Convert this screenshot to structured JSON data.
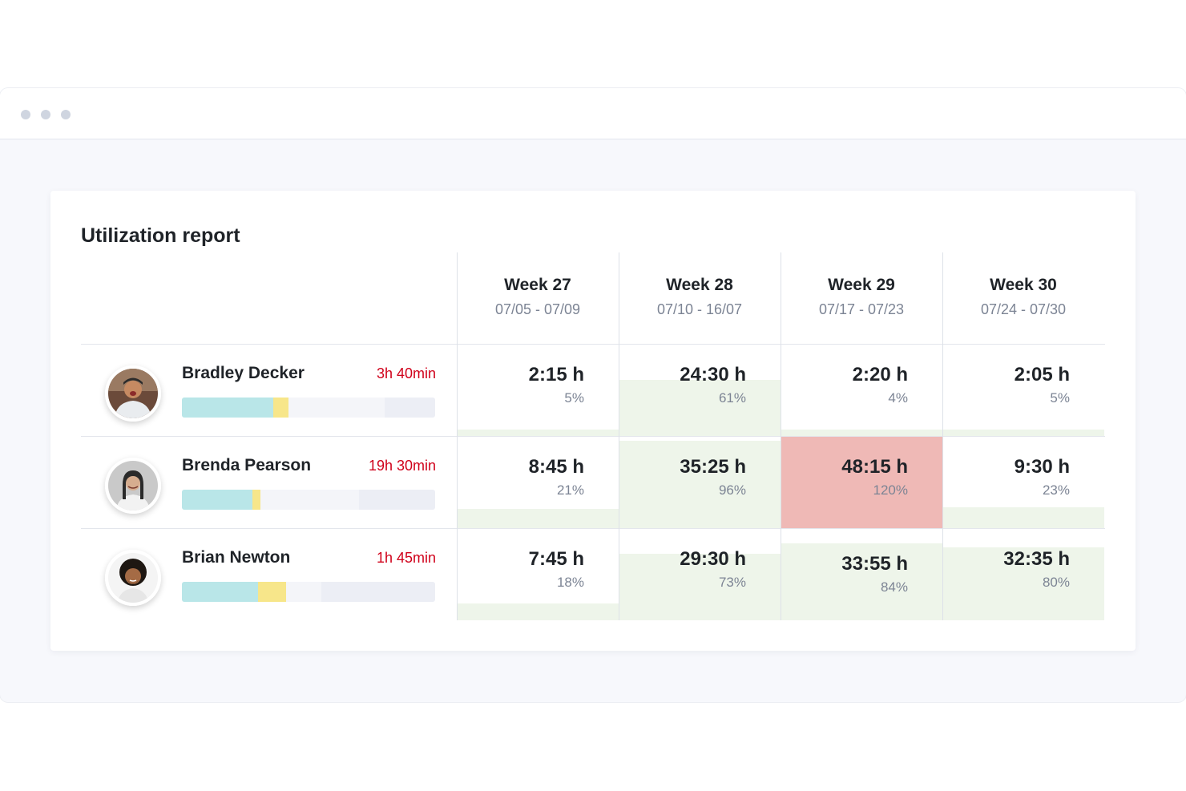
{
  "report": {
    "title": "Utilization report",
    "weeks": [
      {
        "name": "Week 27",
        "range": "07/05 - 07/09"
      },
      {
        "name": "Week 28",
        "range": "07/10 - 16/07"
      },
      {
        "name": "Week 29",
        "range": "07/17 - 07/23"
      },
      {
        "name": "Week 30",
        "range": "07/24 - 07/30"
      }
    ],
    "rows": [
      {
        "name": "Bradley Decker",
        "time": "3h 40min",
        "avatar": "avatar-bradley",
        "bar": {
          "billable": 0.36,
          "nonbillable": 0.06,
          "booked": 0.8
        },
        "cells": [
          {
            "hours": "2:15 h",
            "percent": "5%",
            "utilization": 5
          },
          {
            "hours": "24:30 h",
            "percent": "61%",
            "utilization": 61
          },
          {
            "hours": "2:20 h",
            "percent": "4%",
            "utilization": 4
          },
          {
            "hours": "2:05 h",
            "percent": "5%",
            "utilization": 5
          }
        ]
      },
      {
        "name": "Brenda Pearson",
        "time": "19h 30min",
        "avatar": "avatar-brenda",
        "bar": {
          "billable": 0.28,
          "nonbillable": 0.03,
          "booked": 0.7
        },
        "cells": [
          {
            "hours": "8:45 h",
            "percent": "21%",
            "utilization": 21
          },
          {
            "hours": "35:25 h",
            "percent": "96%",
            "utilization": 96
          },
          {
            "hours": "48:15 h",
            "percent": "120%",
            "utilization": 120
          },
          {
            "hours": "9:30 h",
            "percent": "23%",
            "utilization": 23
          }
        ]
      },
      {
        "name": "Brian Newton",
        "time": "1h 45min",
        "avatar": "avatar-brian",
        "bar": {
          "billable": 0.3,
          "nonbillable": 0.11,
          "booked": 0.55
        },
        "cells": [
          {
            "hours": "7:45 h",
            "percent": "18%",
            "utilization": 18
          },
          {
            "hours": "29:30 h",
            "percent": "73%",
            "utilization": 73
          },
          {
            "hours": "33:55 h",
            "percent": "84%",
            "utilization": 84
          },
          {
            "hours": "32:35 h",
            "percent": "80%",
            "utilization": 80
          }
        ]
      }
    ]
  },
  "colors": {
    "billable": "#b9e6e8",
    "nonbillable": "#f7e68a",
    "booked": "#f4f5f9",
    "capacity": "#eceef5",
    "utilization_fill": "#eef5ea",
    "overbooked_fill": "#efb9b6",
    "overtime_text": "#d0021b"
  }
}
